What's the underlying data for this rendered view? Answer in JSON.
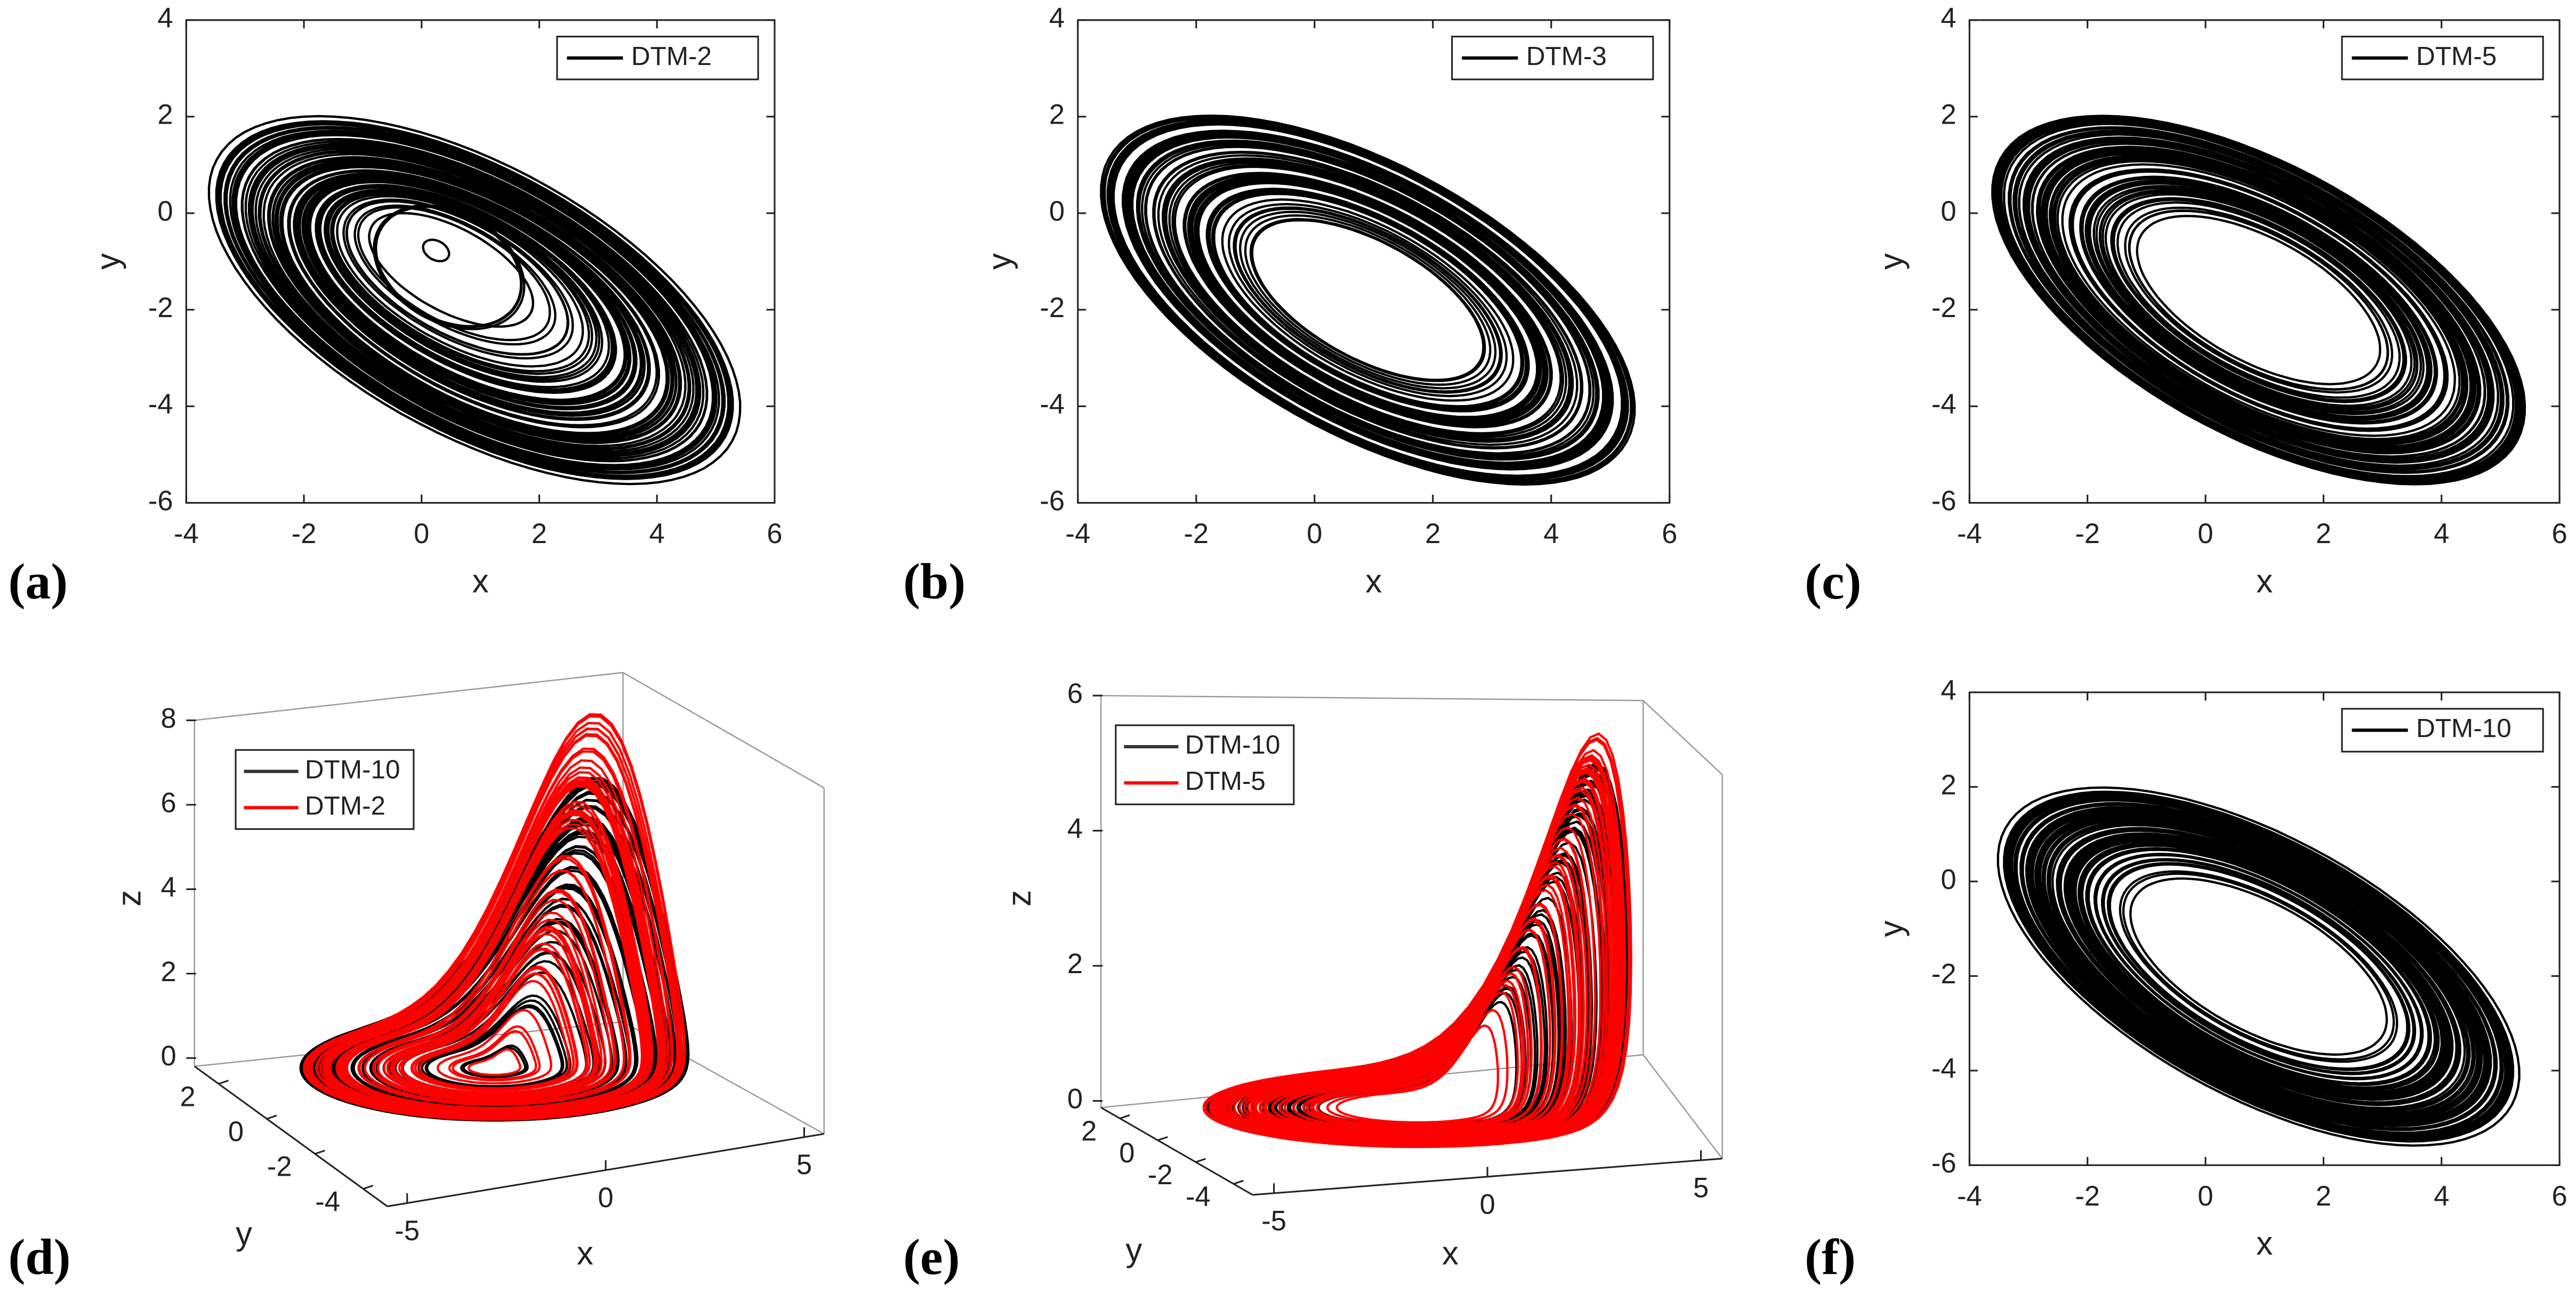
{
  "chart_data": [
    {
      "type": "line",
      "panel": "(a)",
      "xlabel": "x",
      "ylabel": "y",
      "xlim": [
        -4,
        6
      ],
      "ylim": [
        -6,
        4
      ],
      "xticks": [
        -4,
        -2,
        0,
        2,
        4,
        6
      ],
      "yticks": [
        -6,
        -4,
        -2,
        0,
        2,
        4
      ],
      "legend": "upper right",
      "series": [
        {
          "name": "DTM-2",
          "color": "#000000"
        }
      ]
    },
    {
      "type": "line",
      "panel": "(b)",
      "xlabel": "x",
      "ylabel": "y",
      "xlim": [
        -4,
        6
      ],
      "ylim": [
        -6,
        4
      ],
      "xticks": [
        -4,
        -2,
        0,
        2,
        4,
        6
      ],
      "yticks": [
        -6,
        -4,
        -2,
        0,
        2,
        4
      ],
      "legend": "upper right",
      "series": [
        {
          "name": "DTM-3",
          "color": "#000000"
        }
      ]
    },
    {
      "type": "line",
      "panel": "(c)",
      "xlabel": "x",
      "ylabel": "y",
      "xlim": [
        -4,
        6
      ],
      "ylim": [
        -6,
        4
      ],
      "xticks": [
        -4,
        -2,
        0,
        2,
        4,
        6
      ],
      "yticks": [
        -6,
        -4,
        -2,
        0,
        2,
        4
      ],
      "legend": "upper right",
      "series": [
        {
          "name": "DTM-5",
          "color": "#000000"
        }
      ]
    },
    {
      "type": "line3d",
      "panel": "(d)",
      "xlabel": "x",
      "ylabel": "y",
      "zlabel": "z",
      "xlim": [
        -5.5,
        5.5
      ],
      "ylim": [
        -5,
        3
      ],
      "zlim": [
        0,
        8
      ],
      "xticks": [
        -5,
        0,
        5
      ],
      "yticks": [
        -4,
        -2,
        0,
        2
      ],
      "zticks": [
        0,
        2,
        4,
        6,
        8
      ],
      "legend": "upper left",
      "series": [
        {
          "name": "DTM-10",
          "color": "#000000"
        },
        {
          "name": "DTM-2",
          "color": "#ff0000"
        }
      ]
    },
    {
      "type": "line3d",
      "panel": "(e)",
      "xlabel": "x",
      "ylabel": "y",
      "zlabel": "z",
      "xlim": [
        -5.5,
        5.5
      ],
      "ylim": [
        -5,
        3
      ],
      "zlim": [
        0,
        6
      ],
      "xticks": [
        -5,
        0,
        5
      ],
      "yticks": [
        -4,
        -2,
        0,
        2
      ],
      "zticks": [
        0,
        2,
        4,
        6
      ],
      "legend": "upper left",
      "series": [
        {
          "name": "DTM-10",
          "color": "#000000"
        },
        {
          "name": "DTM-5",
          "color": "#ff0000"
        }
      ]
    },
    {
      "type": "line",
      "panel": "(f)",
      "xlabel": "x",
      "ylabel": "y",
      "xlim": [
        -4,
        6
      ],
      "ylim": [
        -6,
        4
      ],
      "xticks": [
        -4,
        -2,
        0,
        2,
        4,
        6
      ],
      "yticks": [
        -6,
        -4,
        -2,
        0,
        2,
        4
      ],
      "legend": "upper right",
      "series": [
        {
          "name": "DTM-10",
          "color": "#000000"
        }
      ]
    }
  ]
}
